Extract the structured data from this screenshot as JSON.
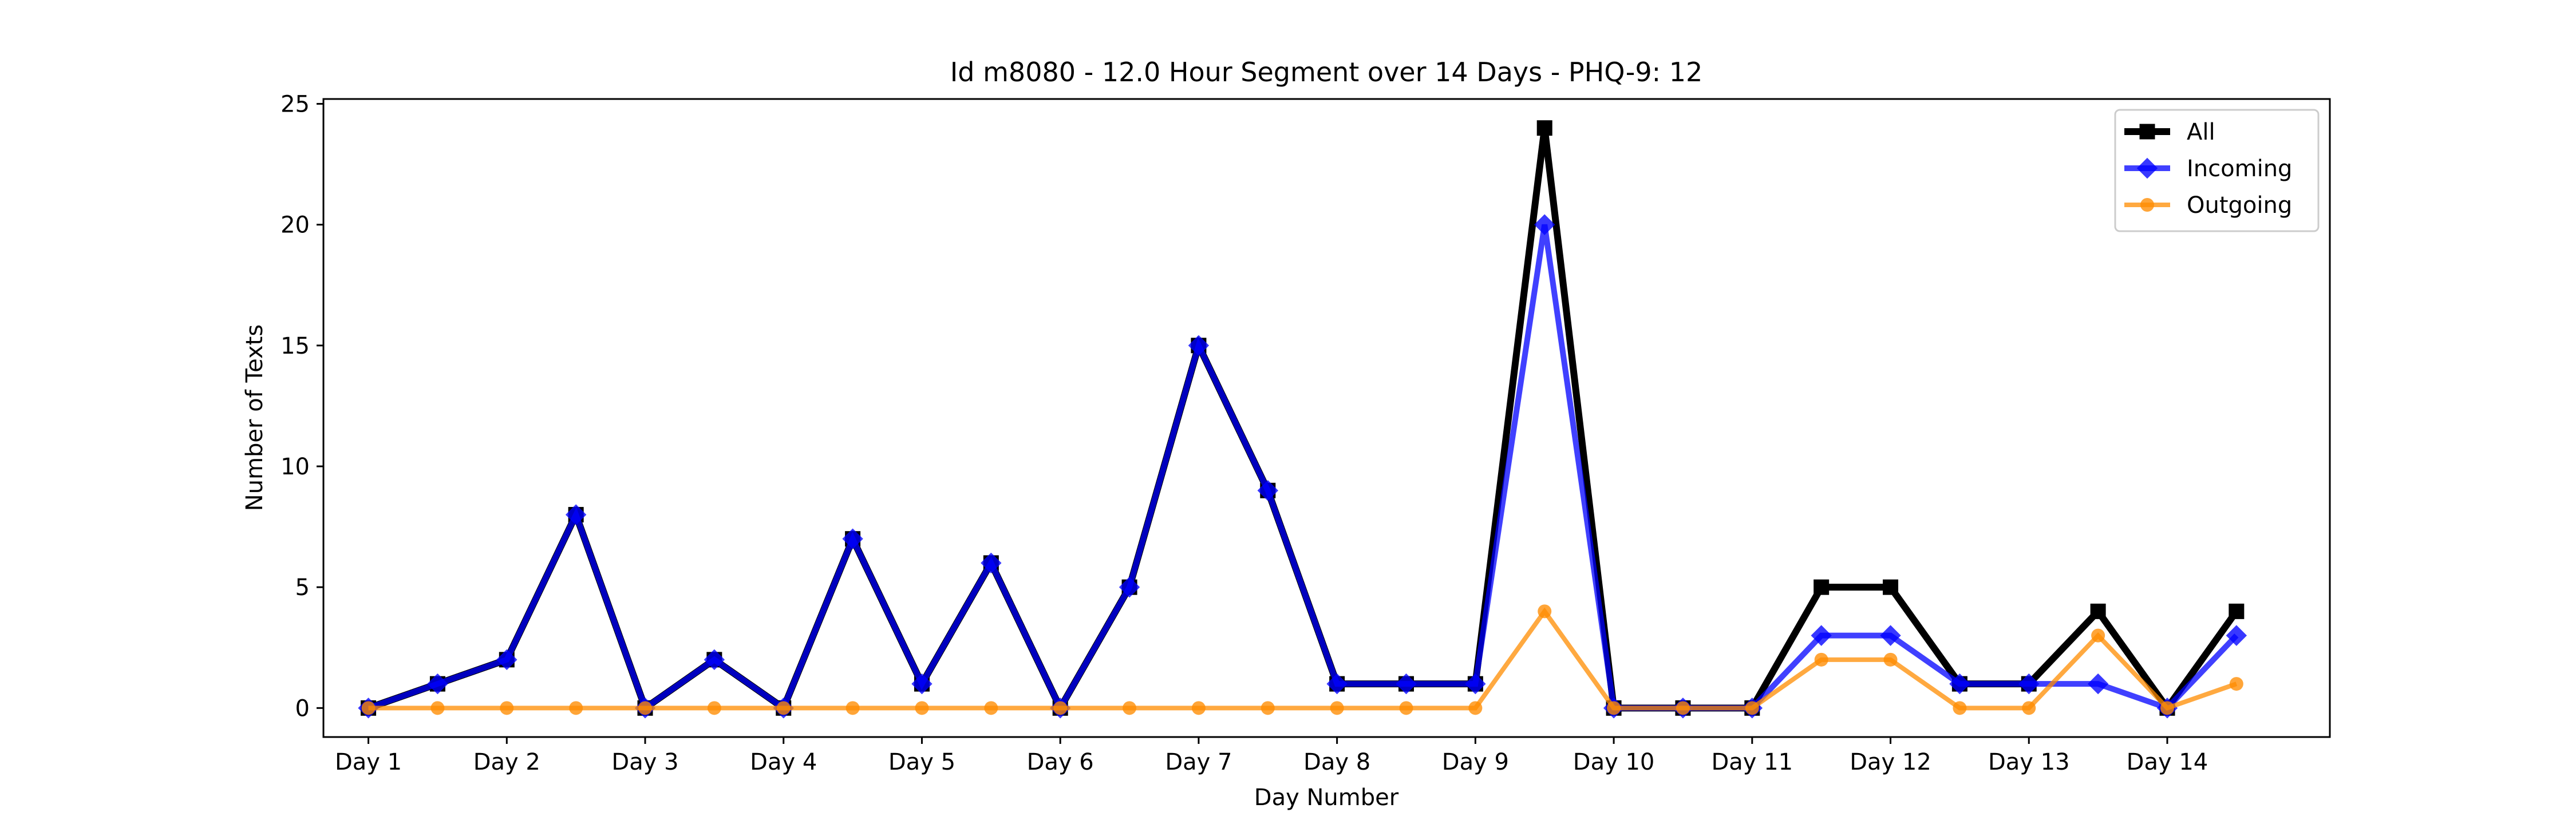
{
  "chart_data": {
    "type": "line",
    "title": "Id m8080 - 12.0 Hour Segment over 14 Days - PHQ-9: 12",
    "xlabel": "Day Number",
    "ylabel": "Number of Texts",
    "xticks": [
      "Day 1",
      "Day 2",
      "Day 3",
      "Day 4",
      "Day 5",
      "Day 6",
      "Day 7",
      "Day 8",
      "Day 9",
      "Day 10",
      "Day 11",
      "Day 12",
      "Day 13",
      "Day 14"
    ],
    "yticks": [
      0,
      5,
      10,
      15,
      20,
      25
    ],
    "ylim": [
      -1.2,
      25.2
    ],
    "xlim": [
      -0.65,
      28.35
    ],
    "grid": false,
    "legend_position": "top-right",
    "series": [
      {
        "name": "All",
        "color": "#000000",
        "marker": "square",
        "values": [
          0,
          1,
          2,
          8,
          0,
          2,
          0,
          7,
          1,
          6,
          0,
          5,
          15,
          9,
          1,
          1,
          1,
          24,
          0,
          0,
          0,
          5,
          5,
          1,
          1,
          4,
          0,
          4
        ]
      },
      {
        "name": "Incoming",
        "color": "#0000ff",
        "marker": "diamond",
        "values": [
          0,
          1,
          2,
          8,
          0,
          2,
          0,
          7,
          1,
          6,
          0,
          5,
          15,
          9,
          1,
          1,
          1,
          20,
          0,
          0,
          0,
          3,
          3,
          1,
          1,
          1,
          0,
          3
        ]
      },
      {
        "name": "Outgoing",
        "color": "#ff8c00",
        "marker": "circle",
        "values": [
          0,
          0,
          0,
          0,
          0,
          0,
          0,
          0,
          0,
          0,
          0,
          0,
          0,
          0,
          0,
          0,
          0,
          4,
          0,
          0,
          0,
          2,
          2,
          0,
          0,
          3,
          0,
          1
        ]
      }
    ]
  }
}
